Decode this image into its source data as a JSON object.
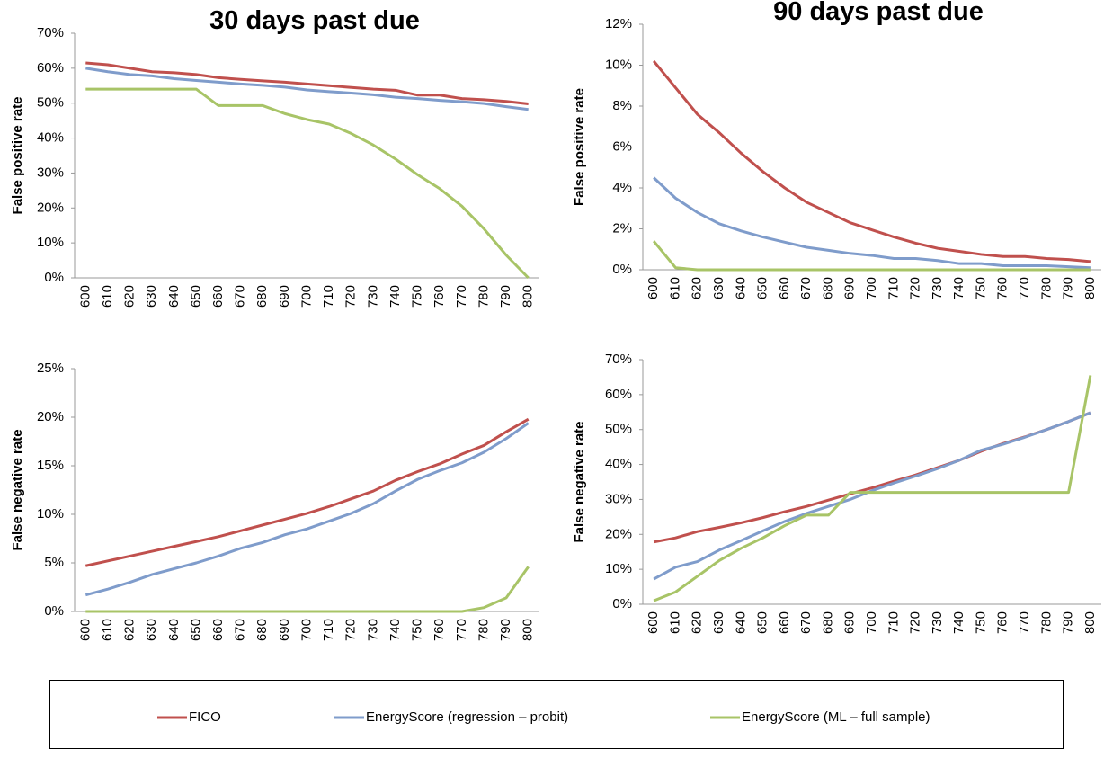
{
  "chart_data": [
    {
      "type": "line",
      "title": "30 days past due",
      "y_label": "False positive rate",
      "categories": [
        "600",
        "610",
        "620",
        "630",
        "640",
        "650",
        "660",
        "670",
        "680",
        "690",
        "700",
        "710",
        "720",
        "730",
        "740",
        "750",
        "760",
        "770",
        "780",
        "790",
        "800"
      ],
      "series": [
        {
          "name": "FICO",
          "color": "#c0504d",
          "values": [
            61.5,
            61,
            60,
            59,
            58.7,
            58.2,
            57.3,
            56.8,
            56.4,
            56,
            55.5,
            55,
            54.5,
            54,
            53.7,
            52.3,
            52.3,
            51.3,
            51,
            50.5,
            49.8
          ]
        },
        {
          "name": "EnergyScore (regression – probit)",
          "color": "#7f9ccb",
          "values": [
            60,
            59,
            58.2,
            57.8,
            57,
            56.5,
            56,
            55.5,
            55.1,
            54.6,
            53.8,
            53.3,
            52.9,
            52.4,
            51.7,
            51.3,
            50.8,
            50.4,
            49.9,
            49,
            48.2
          ]
        },
        {
          "name": "EnergyScore (ML – full sample)",
          "color": "#a8c467",
          "values": [
            54,
            54,
            54,
            54,
            54,
            54,
            49.3,
            49.3,
            49.3,
            47,
            45.3,
            44,
            41.3,
            38,
            34,
            29.5,
            25.5,
            20.5,
            14,
            6.5,
            0
          ]
        }
      ],
      "ylim": [
        0,
        70
      ],
      "yticks": [
        {
          "value": 0,
          "label": "0%"
        },
        {
          "value": 10,
          "label": "10%"
        },
        {
          "value": 20,
          "label": "20%"
        },
        {
          "value": 30,
          "label": "30%"
        },
        {
          "value": 40,
          "label": "40%"
        },
        {
          "value": 50,
          "label": "50%"
        },
        {
          "value": 60,
          "label": "60%"
        },
        {
          "value": 70,
          "label": "70%"
        }
      ]
    },
    {
      "type": "line",
      "title": "90 days past due",
      "y_label": "False positive rate",
      "categories": [
        "600",
        "610",
        "620",
        "630",
        "640",
        "650",
        "660",
        "670",
        "680",
        "690",
        "700",
        "710",
        "720",
        "730",
        "740",
        "750",
        "760",
        "770",
        "780",
        "790",
        "800"
      ],
      "series": [
        {
          "name": "FICO",
          "color": "#c0504d",
          "values": [
            10.2,
            8.9,
            7.6,
            6.7,
            5.7,
            4.8,
            4.0,
            3.3,
            2.8,
            2.3,
            1.95,
            1.6,
            1.3,
            1.05,
            0.9,
            0.75,
            0.65,
            0.65,
            0.55,
            0.5,
            0.4
          ]
        },
        {
          "name": "EnergyScore (regression – probit)",
          "color": "#7f9ccb",
          "values": [
            4.5,
            3.5,
            2.8,
            2.25,
            1.9,
            1.6,
            1.35,
            1.1,
            0.95,
            0.8,
            0.7,
            0.55,
            0.55,
            0.45,
            0.3,
            0.3,
            0.2,
            0.2,
            0.2,
            0.15,
            0.1
          ]
        },
        {
          "name": "EnergyScore (ML – full sample)",
          "color": "#a8c467",
          "values": [
            1.4,
            0.1,
            0,
            0,
            0,
            0,
            0,
            0,
            0,
            0,
            0,
            0,
            0,
            0,
            0,
            0,
            0,
            0,
            0,
            0,
            0
          ]
        }
      ],
      "ylim": [
        0,
        12
      ],
      "yticks": [
        {
          "value": 0,
          "label": "0%"
        },
        {
          "value": 2,
          "label": "2%"
        },
        {
          "value": 4,
          "label": "4%"
        },
        {
          "value": 6,
          "label": "6%"
        },
        {
          "value": 8,
          "label": "8%"
        },
        {
          "value": 10,
          "label": "10%"
        },
        {
          "value": 12,
          "label": "12%"
        }
      ]
    },
    {
      "type": "line",
      "y_label": "False negative rate",
      "categories": [
        "600",
        "610",
        "620",
        "630",
        "640",
        "650",
        "660",
        "670",
        "680",
        "690",
        "700",
        "710",
        "720",
        "730",
        "740",
        "750",
        "760",
        "770",
        "780",
        "790",
        "800"
      ],
      "series": [
        {
          "name": "FICO",
          "color": "#c0504d",
          "values": [
            4.7,
            5.2,
            5.7,
            6.2,
            6.7,
            7.2,
            7.7,
            8.3,
            8.9,
            9.5,
            10.1,
            10.8,
            11.6,
            12.4,
            13.5,
            14.4,
            15.2,
            16.2,
            17.1,
            18.5,
            19.8
          ]
        },
        {
          "name": "EnergyScore (regression – probit)",
          "color": "#7f9ccb",
          "values": [
            1.7,
            2.3,
            3.0,
            3.8,
            4.4,
            5.0,
            5.7,
            6.5,
            7.1,
            7.9,
            8.5,
            9.3,
            10.1,
            11.1,
            12.4,
            13.6,
            14.5,
            15.3,
            16.4,
            17.8,
            19.4
          ]
        },
        {
          "name": "EnergyScore (ML – full sample)",
          "color": "#a8c467",
          "values": [
            0,
            0,
            0,
            0,
            0,
            0,
            0,
            0,
            0,
            0,
            0,
            0,
            0,
            0,
            0,
            0,
            0,
            0,
            0.4,
            1.4,
            4.6
          ]
        }
      ],
      "ylim": [
        0,
        25
      ],
      "yticks": [
        {
          "value": 0,
          "label": "0%"
        },
        {
          "value": 5,
          "label": "5%"
        },
        {
          "value": 10,
          "label": "10%"
        },
        {
          "value": 15,
          "label": "15%"
        },
        {
          "value": 20,
          "label": "20%"
        },
        {
          "value": 25,
          "label": "25%"
        }
      ]
    },
    {
      "type": "line",
      "y_label": "False negative rate",
      "categories": [
        "600",
        "610",
        "620",
        "630",
        "640",
        "650",
        "660",
        "670",
        "680",
        "690",
        "700",
        "710",
        "720",
        "730",
        "740",
        "750",
        "760",
        "770",
        "780",
        "790",
        "800"
      ],
      "series": [
        {
          "name": "FICO",
          "color": "#c0504d",
          "values": [
            17.8,
            19,
            20.8,
            22,
            23.3,
            24.8,
            26.5,
            28,
            29.8,
            31.6,
            33.3,
            35.2,
            37,
            39.1,
            41.2,
            43.8,
            46,
            47.9,
            50,
            52.3,
            54.8
          ]
        },
        {
          "name": "EnergyScore (regression – probit)",
          "color": "#7f9ccb",
          "values": [
            7.2,
            10.6,
            12.2,
            15.5,
            18.2,
            21,
            23.7,
            26,
            28,
            30,
            32.5,
            34.7,
            36.7,
            38.8,
            41.2,
            44.1,
            45.8,
            47.8,
            50,
            52.3,
            54.8
          ]
        },
        {
          "name": "EnergyScore (ML – full sample)",
          "color": "#a8c467",
          "values": [
            1,
            3.5,
            8,
            12.5,
            16,
            19,
            22.5,
            25.5,
            25.5,
            32,
            32,
            32,
            32,
            32,
            32,
            32,
            32,
            32,
            32,
            32,
            65.5
          ]
        }
      ],
      "ylim": [
        0,
        70
      ],
      "yticks": [
        {
          "value": 0,
          "label": "0%"
        },
        {
          "value": 10,
          "label": "10%"
        },
        {
          "value": 20,
          "label": "20%"
        },
        {
          "value": 30,
          "label": "30%"
        },
        {
          "value": 40,
          "label": "40%"
        },
        {
          "value": 50,
          "label": "50%"
        },
        {
          "value": 60,
          "label": "60%"
        },
        {
          "value": 70,
          "label": "70%"
        }
      ]
    }
  ]
}
